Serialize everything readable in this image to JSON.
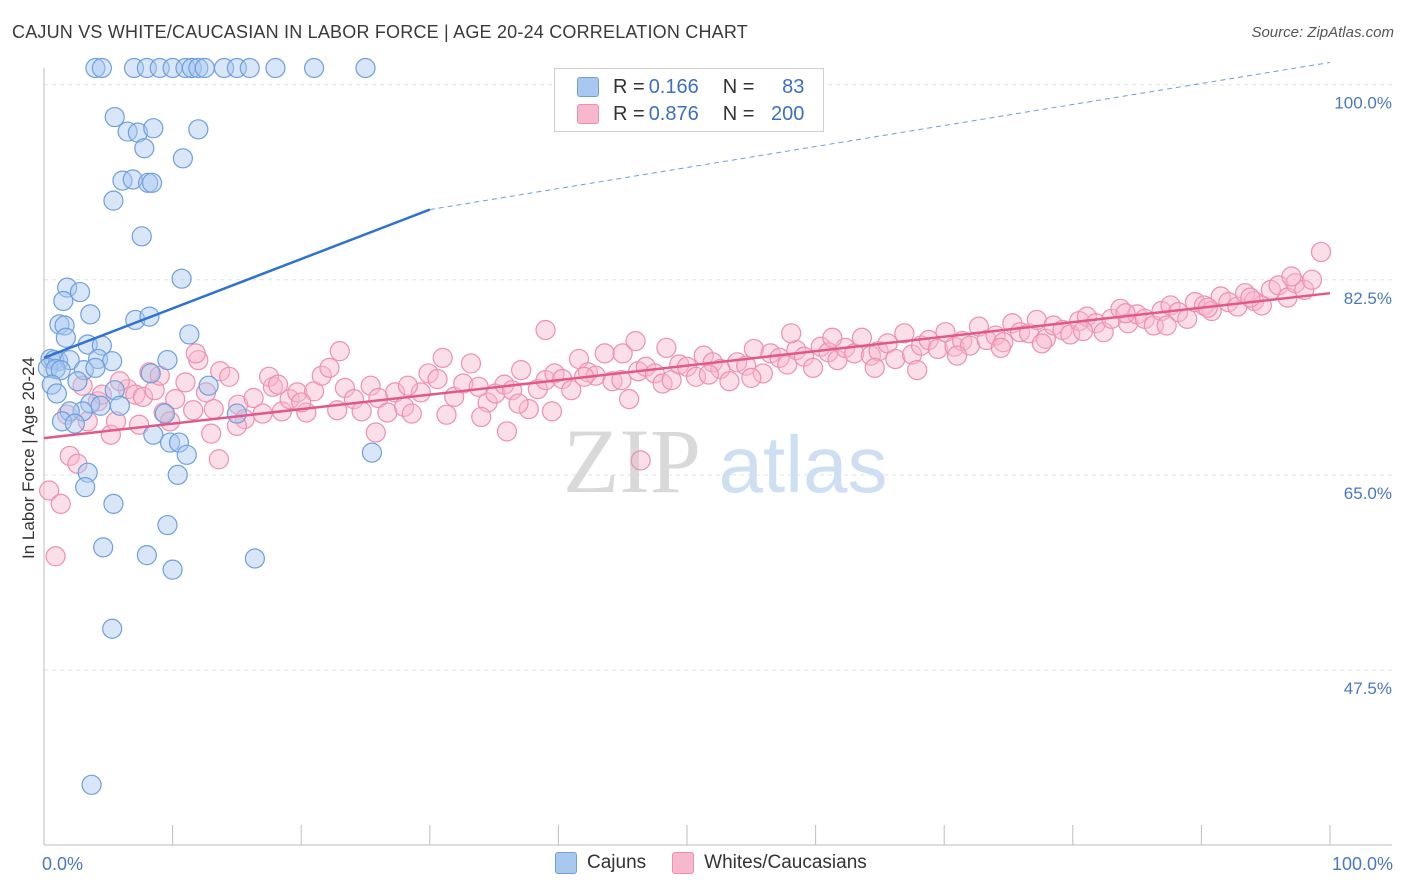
{
  "title": "CAJUN VS WHITE/CAUCASIAN IN LABOR FORCE | AGE 20-24 CORRELATION CHART",
  "source": "Source: ZipAtlas.com",
  "watermark": {
    "zip": "ZIP",
    "atlas": "atlas"
  },
  "legend": {
    "cajun": {
      "r_label": "R = ",
      "r_value": "0.166",
      "n_label": "N = ",
      "n_value": "83"
    },
    "white": {
      "r_label": "R = ",
      "r_value": "0.876",
      "n_label": "N = ",
      "n_value": "200"
    }
  },
  "bottom_legend": {
    "cajun": "Cajuns",
    "white": "Whites/Caucasians"
  },
  "colors": {
    "cajun_fill": "#a9c8f0",
    "cajun_stroke": "#6e9fde",
    "cajun_line": "#2f72d0",
    "white_fill": "#f7b7cc",
    "white_stroke": "#ee8fae",
    "white_line": "#e0598a",
    "axis_text": "#4a78c0",
    "grid": "#e2e2e2"
  },
  "chart_data": {
    "type": "scatter",
    "ylabel": "In Labor Force | Age 20-24",
    "x_ticks": [
      "0.0%",
      "100.0%"
    ],
    "y_ticks": [
      {
        "value": 100.0,
        "label": "100.0%"
      },
      {
        "value": 82.5,
        "label": "82.5%"
      },
      {
        "value": 65.0,
        "label": "65.0%"
      },
      {
        "value": 47.5,
        "label": "47.5%"
      }
    ],
    "xlim": [
      0,
      100
    ],
    "ylim": [
      31.8,
      101.5
    ],
    "grid": true,
    "series": [
      {
        "name": "Cajuns",
        "trend": {
          "x": [
            0,
            30
          ],
          "y": [
            75.5,
            88.8
          ],
          "dashed_to": [
            100,
            102
          ]
        },
        "points": [
          [
            4,
            101.5
          ],
          [
            4.5,
            101.5
          ],
          [
            7,
            101.5
          ],
          [
            8,
            101.5
          ],
          [
            9,
            101.5
          ],
          [
            10,
            101.5
          ],
          [
            11,
            101.5
          ],
          [
            11.5,
            101.5
          ],
          [
            12,
            101.5
          ],
          [
            12.5,
            101.5
          ],
          [
            14,
            101.5
          ],
          [
            15,
            101.5
          ],
          [
            16,
            101.5
          ],
          [
            18,
            101.5
          ],
          [
            21,
            101.5
          ],
          [
            25,
            101.5
          ],
          [
            5.5,
            97.1
          ],
          [
            6.5,
            95.8
          ],
          [
            7.3,
            95.7
          ],
          [
            8.5,
            96.1
          ],
          [
            12,
            96.0
          ],
          [
            7.8,
            94.3
          ],
          [
            10.8,
            93.4
          ],
          [
            6.1,
            91.4
          ],
          [
            6.9,
            91.5
          ],
          [
            8.1,
            91.2
          ],
          [
            8.4,
            91.2
          ],
          [
            5.4,
            89.6
          ],
          [
            7.6,
            86.4
          ],
          [
            10.7,
            82.6
          ],
          [
            1.8,
            81.8
          ],
          [
            2.8,
            81.4
          ],
          [
            1.5,
            80.6
          ],
          [
            3.6,
            79.4
          ],
          [
            7.1,
            78.9
          ],
          [
            8.2,
            79.2
          ],
          [
            1.2,
            78.5
          ],
          [
            1.6,
            78.4
          ],
          [
            11.3,
            77.6
          ],
          [
            1.7,
            77.3
          ],
          [
            3.4,
            76.7
          ],
          [
            4.5,
            76.6
          ],
          [
            0.5,
            75.4
          ],
          [
            0.8,
            75.3
          ],
          [
            1.1,
            75.2
          ],
          [
            2.0,
            75.3
          ],
          [
            4.2,
            75.4
          ],
          [
            5.3,
            75.2
          ],
          [
            9.6,
            75.3
          ],
          [
            0.3,
            74.6
          ],
          [
            0.9,
            74.5
          ],
          [
            1.3,
            74.4
          ],
          [
            3.1,
            74.4
          ],
          [
            4.0,
            74.6
          ],
          [
            8.3,
            74.1
          ],
          [
            2.6,
            73.4
          ],
          [
            0.6,
            73.1
          ],
          [
            12.8,
            73.0
          ],
          [
            5.5,
            72.6
          ],
          [
            1.0,
            72.3
          ],
          [
            3.6,
            71.4
          ],
          [
            4.4,
            71.2
          ],
          [
            5.9,
            71.2
          ],
          [
            3.0,
            70.7
          ],
          [
            2.0,
            70.7
          ],
          [
            1.4,
            69.8
          ],
          [
            2.4,
            69.6
          ],
          [
            9.4,
            70.5
          ],
          [
            15,
            70.5
          ],
          [
            8.5,
            68.6
          ],
          [
            9.8,
            67.9
          ],
          [
            10.5,
            67.9
          ],
          [
            11.1,
            66.8
          ],
          [
            25.5,
            67.0
          ],
          [
            3.4,
            65.2
          ],
          [
            10.4,
            65.0
          ],
          [
            3.2,
            63.9
          ],
          [
            5.4,
            62.4
          ],
          [
            9.6,
            60.5
          ],
          [
            4.6,
            58.5
          ],
          [
            8.0,
            57.8
          ],
          [
            16.4,
            57.5
          ],
          [
            10.0,
            56.5
          ],
          [
            5.3,
            51.2
          ],
          [
            3.7,
            37.2
          ]
        ]
      },
      {
        "name": "Whites/Caucasians",
        "trend": {
          "x": [
            0,
            100
          ],
          "y": [
            68.3,
            81.3
          ]
        },
        "points": [
          [
            0.4,
            63.6
          ],
          [
            0.9,
            57.7
          ],
          [
            1.3,
            62.4
          ],
          [
            2.0,
            66.7
          ],
          [
            2.6,
            66.0
          ],
          [
            3.4,
            69.8
          ],
          [
            4.2,
            71.6
          ],
          [
            5.2,
            68.6
          ],
          [
            5.6,
            69.8
          ],
          [
            6.5,
            72.7
          ],
          [
            7.1,
            72.2
          ],
          [
            7.7,
            72.0
          ],
          [
            8.2,
            74.2
          ],
          [
            8.6,
            72.6
          ],
          [
            9.3,
            70.6
          ],
          [
            9.8,
            69.8
          ],
          [
            10.2,
            71.8
          ],
          [
            11.0,
            73.3
          ],
          [
            11.6,
            70.8
          ],
          [
            12.0,
            75.3
          ],
          [
            12.6,
            72.4
          ],
          [
            13.2,
            70.9
          ],
          [
            13.7,
            74.3
          ],
          [
            14.4,
            73.8
          ],
          [
            15.1,
            71.3
          ],
          [
            15.6,
            70.0
          ],
          [
            16.3,
            71.9
          ],
          [
            17.0,
            70.5
          ],
          [
            17.8,
            72.9
          ],
          [
            18.5,
            70.7
          ],
          [
            19.1,
            71.8
          ],
          [
            19.7,
            72.4
          ],
          [
            20.4,
            70.6
          ],
          [
            21.0,
            72.5
          ],
          [
            21.6,
            73.9
          ],
          [
            22.2,
            74.6
          ],
          [
            22.8,
            70.8
          ],
          [
            23.4,
            72.8
          ],
          [
            24.1,
            71.8
          ],
          [
            24.7,
            70.7
          ],
          [
            25.4,
            73.0
          ],
          [
            26.0,
            71.9
          ],
          [
            26.7,
            70.6
          ],
          [
            27.3,
            72.4
          ],
          [
            28.0,
            71.1
          ],
          [
            28.6,
            70.5
          ],
          [
            29.3,
            72.4
          ],
          [
            29.9,
            74.1
          ],
          [
            30.6,
            73.6
          ],
          [
            31.3,
            70.4
          ],
          [
            31.9,
            72.0
          ],
          [
            32.6,
            73.2
          ],
          [
            33.2,
            75.0
          ],
          [
            33.8,
            72.9
          ],
          [
            34.5,
            71.5
          ],
          [
            35.1,
            72.3
          ],
          [
            35.8,
            73.1
          ],
          [
            36.4,
            72.6
          ],
          [
            37.1,
            74.4
          ],
          [
            37.7,
            70.9
          ],
          [
            38.4,
            72.7
          ],
          [
            39.0,
            73.5
          ],
          [
            39.7,
            74.1
          ],
          [
            40.3,
            73.6
          ],
          [
            41.0,
            72.6
          ],
          [
            41.6,
            75.4
          ],
          [
            42.3,
            74.2
          ],
          [
            42.9,
            73.9
          ],
          [
            43.6,
            75.9
          ],
          [
            44.2,
            73.4
          ],
          [
            44.9,
            73.5
          ],
          [
            45.5,
            71.8
          ],
          [
            46.2,
            74.3
          ],
          [
            46.8,
            74.7
          ],
          [
            47.5,
            74.1
          ],
          [
            48.1,
            73.2
          ],
          [
            48.8,
            73.5
          ],
          [
            49.4,
            74.9
          ],
          [
            50.0,
            74.7
          ],
          [
            50.7,
            73.8
          ],
          [
            51.3,
            75.7
          ],
          [
            52.0,
            75.1
          ],
          [
            52.6,
            74.5
          ],
          [
            53.3,
            73.4
          ],
          [
            53.9,
            75.1
          ],
          [
            54.6,
            74.8
          ],
          [
            55.2,
            76.3
          ],
          [
            55.9,
            74.1
          ],
          [
            56.5,
            75.9
          ],
          [
            57.2,
            75.5
          ],
          [
            57.8,
            74.9
          ],
          [
            58.5,
            76.2
          ],
          [
            59.1,
            75.6
          ],
          [
            59.8,
            74.6
          ],
          [
            60.4,
            76.5
          ],
          [
            61.0,
            76.0
          ],
          [
            61.7,
            75.3
          ],
          [
            62.3,
            76.4
          ],
          [
            63.0,
            75.9
          ],
          [
            63.6,
            77.3
          ],
          [
            64.3,
            75.7
          ],
          [
            64.9,
            76.1
          ],
          [
            65.6,
            76.8
          ],
          [
            66.2,
            75.4
          ],
          [
            66.9,
            77.7
          ],
          [
            67.5,
            75.8
          ],
          [
            68.2,
            76.6
          ],
          [
            68.8,
            77.1
          ],
          [
            69.5,
            76.3
          ],
          [
            70.1,
            77.8
          ],
          [
            70.8,
            76.5
          ],
          [
            71.4,
            77.0
          ],
          [
            72.0,
            76.6
          ],
          [
            72.7,
            78.3
          ],
          [
            73.3,
            77.1
          ],
          [
            74.0,
            77.5
          ],
          [
            74.6,
            76.9
          ],
          [
            75.3,
            78.6
          ],
          [
            75.9,
            77.8
          ],
          [
            76.6,
            77.7
          ],
          [
            77.2,
            78.9
          ],
          [
            77.9,
            77.2
          ],
          [
            78.5,
            78.4
          ],
          [
            79.2,
            78.0
          ],
          [
            79.8,
            77.6
          ],
          [
            80.5,
            78.8
          ],
          [
            81.1,
            79.2
          ],
          [
            81.8,
            78.6
          ],
          [
            82.4,
            77.8
          ],
          [
            83.0,
            79.0
          ],
          [
            83.7,
            79.9
          ],
          [
            84.3,
            78.6
          ],
          [
            85.0,
            79.4
          ],
          [
            85.6,
            79.0
          ],
          [
            86.3,
            78.4
          ],
          [
            86.9,
            79.7
          ],
          [
            87.6,
            80.2
          ],
          [
            88.2,
            79.6
          ],
          [
            88.9,
            79.0
          ],
          [
            89.5,
            80.5
          ],
          [
            90.2,
            80.2
          ],
          [
            90.8,
            79.7
          ],
          [
            91.5,
            81.0
          ],
          [
            92.1,
            80.5
          ],
          [
            92.8,
            80.1
          ],
          [
            93.4,
            81.3
          ],
          [
            94.1,
            80.6
          ],
          [
            94.7,
            80.2
          ],
          [
            95.4,
            81.6
          ],
          [
            96.0,
            82.0
          ],
          [
            96.7,
            80.9
          ],
          [
            97.3,
            82.2
          ],
          [
            98.0,
            81.6
          ],
          [
            98.6,
            82.5
          ],
          [
            99.3,
            85.0
          ],
          [
            1.8,
            70.4
          ],
          [
            3.0,
            73.0
          ],
          [
            4.5,
            72.2
          ],
          [
            5.9,
            73.4
          ],
          [
            7.4,
            69.5
          ],
          [
            9.0,
            73.9
          ],
          [
            11.8,
            75.9
          ],
          [
            13.0,
            68.7
          ],
          [
            15.0,
            69.4
          ],
          [
            17.5,
            73.8
          ],
          [
            20.0,
            71.5
          ],
          [
            23.0,
            76.1
          ],
          [
            25.8,
            68.8
          ],
          [
            28.3,
            73.0
          ],
          [
            31.0,
            75.5
          ],
          [
            34.0,
            70.2
          ],
          [
            36.9,
            71.4
          ],
          [
            39.5,
            70.7
          ],
          [
            42.0,
            73.8
          ],
          [
            45.0,
            75.9
          ],
          [
            48.4,
            76.4
          ],
          [
            51.7,
            74.0
          ],
          [
            55.0,
            73.7
          ],
          [
            58.1,
            77.7
          ],
          [
            61.3,
            77.3
          ],
          [
            64.6,
            74.6
          ],
          [
            67.9,
            74.4
          ],
          [
            71.0,
            75.7
          ],
          [
            74.4,
            76.4
          ],
          [
            77.6,
            76.8
          ],
          [
            80.8,
            77.9
          ],
          [
            84.1,
            79.5
          ],
          [
            87.3,
            78.4
          ],
          [
            90.5,
            80.0
          ],
          [
            93.8,
            80.9
          ],
          [
            97.0,
            82.8
          ],
          [
            18.2,
            73.1
          ],
          [
            36.0,
            68.9
          ],
          [
            39.0,
            78.0
          ],
          [
            46.0,
            77.0
          ],
          [
            13.6,
            66.4
          ],
          [
            46.4,
            66.3
          ]
        ]
      }
    ]
  }
}
